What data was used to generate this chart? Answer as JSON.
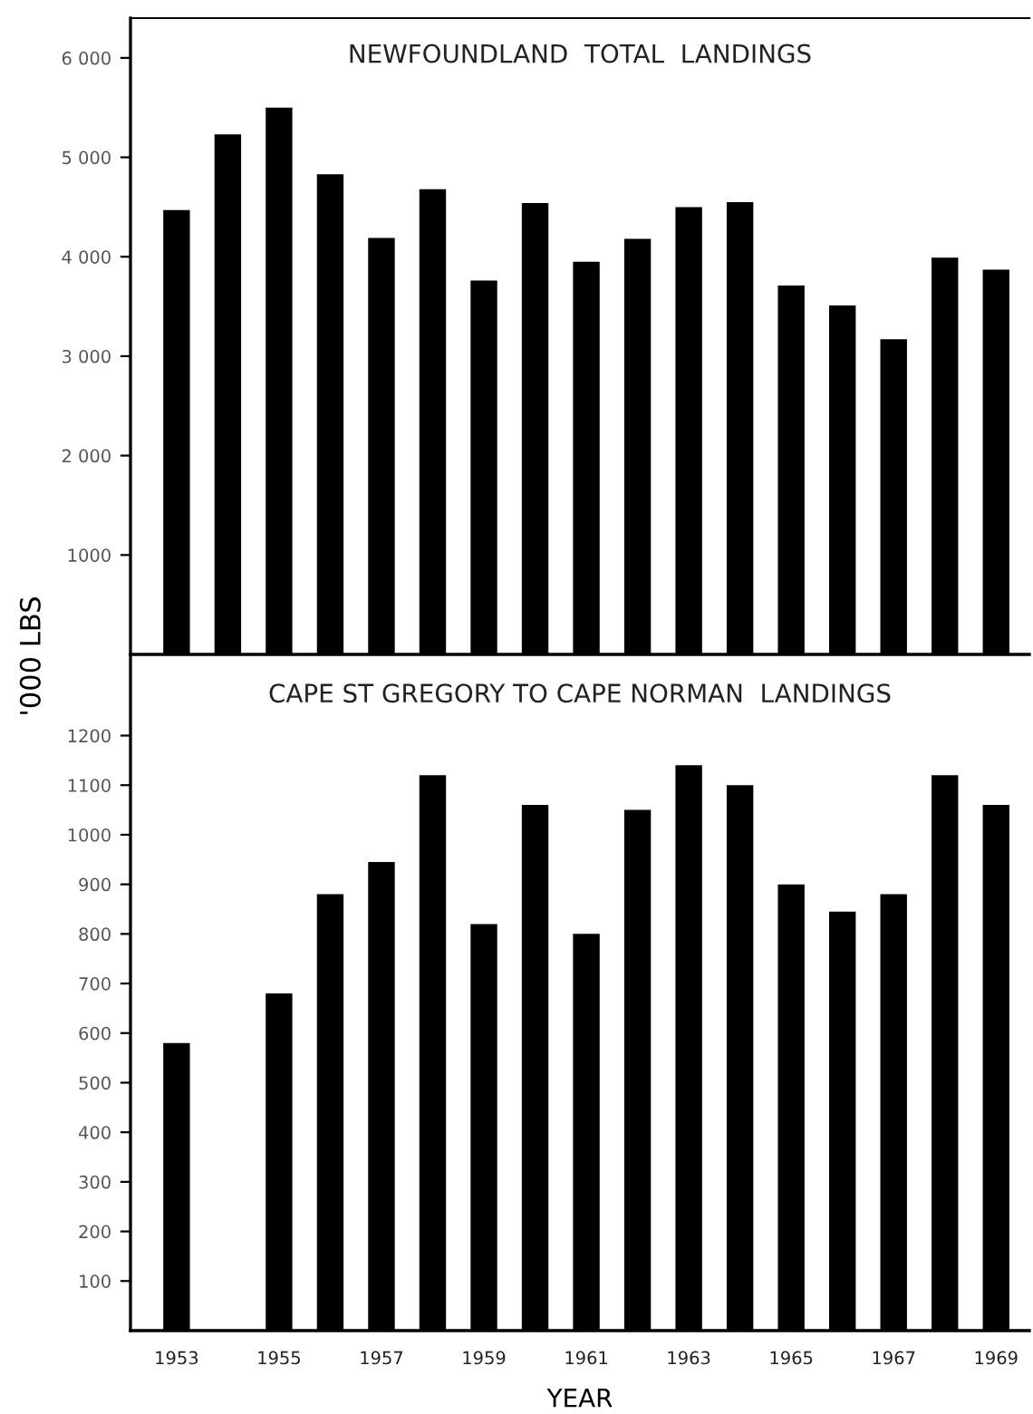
{
  "chart_data": [
    {
      "type": "bar",
      "title": "NEWFOUNDLAND  TOTAL  LANDINGS",
      "ylabel": "'000 LBS",
      "categories": [
        "1953",
        null,
        "1955",
        null,
        "1957",
        null,
        "1959",
        null,
        "1961",
        null,
        "1963",
        null,
        "1965",
        null,
        "1967",
        null,
        "1969"
      ],
      "series": [
        {
          "color": "#000000",
          "values": [
            4470,
            5230,
            5500,
            4830,
            4190,
            4680,
            3760,
            4540,
            3950,
            4180,
            4500,
            4550,
            3710,
            3510,
            3170,
            3990,
            3870
          ]
        }
      ],
      "ylim": [
        0,
        6400
      ],
      "yticks": [
        {
          "value": 1000,
          "label": "1000"
        },
        {
          "value": 2000,
          "label": "2 000"
        },
        {
          "value": 3000,
          "label": "3 000"
        },
        {
          "value": 4000,
          "label": "4 000"
        },
        {
          "value": 5000,
          "label": "5 000"
        },
        {
          "value": 6000,
          "label": "6 000"
        }
      ],
      "tick_labels": "y",
      "grid": false,
      "legend": false
    },
    {
      "type": "bar",
      "title": "CAPE ST GREGORY TO CAPE NORMAN  LANDINGS",
      "xlabel": "YEAR",
      "categories": [
        "1953",
        null,
        "1955",
        null,
        "1957",
        null,
        "1959",
        null,
        "1961",
        null,
        "1963",
        null,
        "1965",
        null,
        "1967",
        null,
        "1969"
      ],
      "series": [
        {
          "color": "#000000",
          "values": [
            580,
            null,
            680,
            880,
            945,
            1120,
            820,
            1060,
            800,
            1050,
            1140,
            1100,
            900,
            845,
            880,
            1120,
            1060
          ]
        }
      ],
      "ylim": [
        0,
        1360
      ],
      "yticks": [
        100,
        200,
        300,
        400,
        500,
        600,
        700,
        800,
        900,
        1000,
        1100,
        1200
      ],
      "grid": false,
      "legend": false
    }
  ]
}
